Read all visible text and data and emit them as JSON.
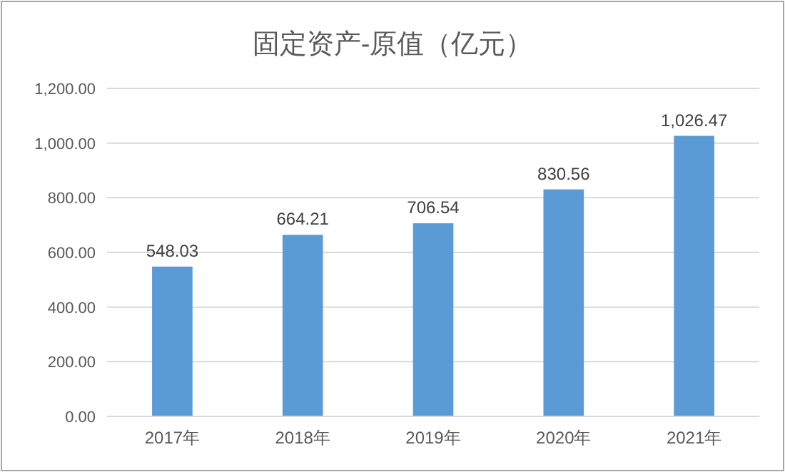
{
  "chart_data": {
    "type": "bar",
    "title": "固定资产-原值（亿元）",
    "categories": [
      "2017年",
      "2018年",
      "2019年",
      "2020年",
      "2021年"
    ],
    "values": [
      548.03,
      664.21,
      706.54,
      830.56,
      1026.47
    ],
    "value_labels": [
      "548.03",
      "664.21",
      "706.54",
      "830.56",
      "1,026.47"
    ],
    "color": "#5b9bd5",
    "ylim": [
      0,
      1200
    ],
    "yticks": [
      {
        "value": 0,
        "label": "0.00"
      },
      {
        "value": 200,
        "label": "200.00"
      },
      {
        "value": 400,
        "label": "400.00"
      },
      {
        "value": 600,
        "label": "600.00"
      },
      {
        "value": 800,
        "label": "800.00"
      },
      {
        "value": 1000,
        "label": "1,000.00"
      },
      {
        "value": 1200,
        "label": "1,200.00"
      }
    ],
    "grid": "y"
  }
}
